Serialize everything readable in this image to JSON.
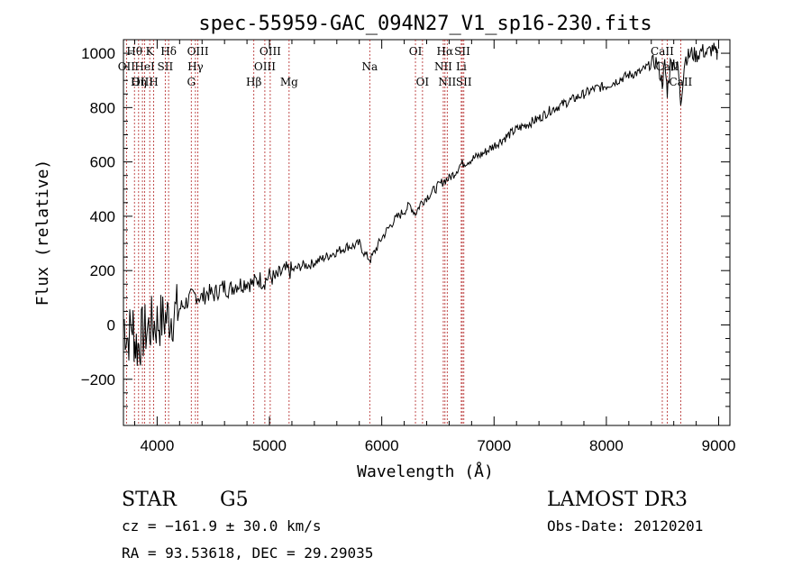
{
  "chart_data": {
    "type": "line",
    "title": "spec-55959-GAC_094N27_V1_sp16-230.fits",
    "xlabel": "Wavelength (Å)",
    "ylabel": "Flux (relative)",
    "xlim": [
      3700,
      9100
    ],
    "ylim": [
      -370,
      1050
    ],
    "x_ticks": [
      4000,
      5000,
      6000,
      7000,
      8000,
      9000
    ],
    "x_tick_labels": [
      "4000",
      "5000",
      "6000",
      "7000",
      "8000",
      "9000"
    ],
    "y_ticks": [
      -200,
      0,
      200,
      400,
      600,
      800,
      1000
    ],
    "y_tick_labels": [
      "−200",
      "0",
      "200",
      "400",
      "600",
      "800",
      "1000"
    ],
    "grid": false,
    "series": [
      {
        "name": "flux",
        "x": [
          3700,
          3740,
          3780,
          3800,
          3830,
          3860,
          3900,
          3950,
          4000,
          4050,
          4100,
          4150,
          4200,
          4250,
          4300,
          4350,
          4400,
          4450,
          4500,
          4550,
          4600,
          4650,
          4700,
          4750,
          4800,
          4850,
          4900,
          4950,
          5000,
          5050,
          5100,
          5150,
          5200,
          5250,
          5300,
          5350,
          5400,
          5450,
          5500,
          5550,
          5600,
          5650,
          5700,
          5750,
          5800,
          5850,
          5900,
          5950,
          6000,
          6050,
          6100,
          6150,
          6200,
          6250,
          6300,
          6350,
          6400,
          6450,
          6500,
          6550,
          6600,
          6650,
          6700,
          6750,
          6800,
          6900,
          7000,
          7100,
          7200,
          7300,
          7400,
          7500,
          7600,
          7700,
          7800,
          7900,
          8000,
          8100,
          8200,
          8300,
          8400,
          8450,
          8498,
          8520,
          8542,
          8570,
          8600,
          8640,
          8662,
          8700,
          8760,
          8800,
          8850,
          8900,
          8950,
          8980,
          8990
        ],
        "y": [
          20,
          -50,
          10,
          -60,
          -80,
          -40,
          -20,
          0,
          10,
          20,
          30,
          40,
          60,
          80,
          100,
          110,
          100,
          120,
          110,
          130,
          140,
          130,
          150,
          150,
          160,
          150,
          170,
          160,
          180,
          170,
          190,
          200,
          200,
          210,
          220,
          220,
          230,
          240,
          250,
          260,
          270,
          280,
          290,
          290,
          300,
          260,
          240,
          280,
          320,
          350,
          380,
          400,
          420,
          440,
          410,
          450,
          470,
          490,
          510,
          530,
          540,
          560,
          590,
          600,
          610,
          630,
          660,
          690,
          720,
          740,
          760,
          790,
          810,
          830,
          850,
          870,
          880,
          900,
          920,
          930,
          960,
          970,
          890,
          960,
          860,
          960,
          970,
          940,
          820,
          980,
          1000,
          990,
          1010,
          1000,
          1020,
          990,
          1000
        ]
      }
    ],
    "spectral_lines": [
      {
        "label": "Hθ",
        "wavelength": 3798,
        "row": 1
      },
      {
        "label": "K",
        "wavelength": 3934,
        "row": 1
      },
      {
        "label": "Hδ",
        "wavelength": 4102,
        "row": 1
      },
      {
        "label": "OIII",
        "wavelength": 4363,
        "row": 1
      },
      {
        "label": "OIII",
        "wavelength": 5007,
        "row": 1
      },
      {
        "label": "OI",
        "wavelength": 6300,
        "row": 1
      },
      {
        "label": "Hα",
        "wavelength": 6563,
        "row": 1
      },
      {
        "label": "SII",
        "wavelength": 6717,
        "row": 1
      },
      {
        "label": "CaII",
        "wavelength": 8498,
        "row": 1
      },
      {
        "label": "OII",
        "wavelength": 3727,
        "row": 2
      },
      {
        "label": "HeI",
        "wavelength": 3889,
        "row": 2
      },
      {
        "label": "SII",
        "wavelength": 4072,
        "row": 2
      },
      {
        "label": "Hγ",
        "wavelength": 4341,
        "row": 2
      },
      {
        "label": "OIII",
        "wavelength": 4959,
        "row": 2
      },
      {
        "label": "Na",
        "wavelength": 5893,
        "row": 2
      },
      {
        "label": "NII",
        "wavelength": 6548,
        "row": 2
      },
      {
        "label": "Li",
        "wavelength": 6708,
        "row": 2
      },
      {
        "label": "CaII",
        "wavelength": 8542,
        "row": 2
      },
      {
        "label": "OIII",
        "wavelength": 3869,
        "row": 3
      },
      {
        "label": "Hη",
        "wavelength": 3835,
        "row": 3
      },
      {
        "label": "H",
        "wavelength": 3969,
        "row": 3
      },
      {
        "label": "G",
        "wavelength": 4304,
        "row": 3
      },
      {
        "label": "Hβ",
        "wavelength": 4861,
        "row": 3
      },
      {
        "label": "Mg",
        "wavelength": 5175,
        "row": 3
      },
      {
        "label": "OI",
        "wavelength": 6363,
        "row": 3
      },
      {
        "label": "NII",
        "wavelength": 6583,
        "row": 3
      },
      {
        "label": "SII",
        "wavelength": 6731,
        "row": 3
      },
      {
        "label": "CaII",
        "wavelength": 8662,
        "row": 3
      }
    ],
    "line_color": "#000000",
    "marker_color": "#b22222"
  },
  "info": {
    "object_class": "STAR",
    "subclass": "G5",
    "survey": "LAMOST DR3",
    "cz": "cz = −161.9 ± 30.0 km/s",
    "obs_date": "Obs-Date: 20120201",
    "coords": "RA =  93.53618, DEC =  29.29035"
  }
}
